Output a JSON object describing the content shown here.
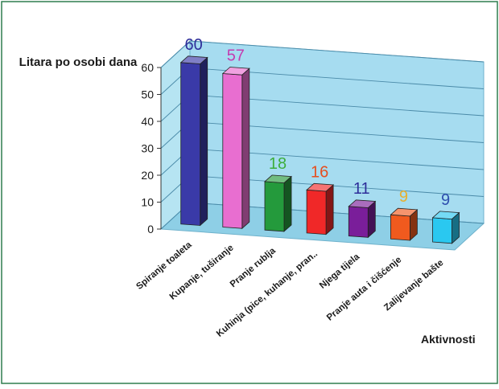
{
  "chart_data": {
    "type": "bar",
    "title": "",
    "ylabel": "Litara po osobi dana",
    "xlabel": "Aktivnosti",
    "ylim": [
      0,
      60
    ],
    "yticks": [
      0,
      10,
      20,
      30,
      40,
      50,
      60
    ],
    "grid": true,
    "style": "3d",
    "categories": [
      "Spiranje toaleta",
      "Kupanje, tuširanje",
      "Pranje rublja",
      "Kuhinja (pice, kuhanje, pran..",
      "Njega tijela",
      "Pranje auta i čišćenje",
      "Zalijevanje bašte"
    ],
    "values": [
      60,
      57,
      18,
      16,
      11,
      9,
      9
    ],
    "colors": [
      "#3a3aa8",
      "#e86ed0",
      "#249a3c",
      "#f02828",
      "#7a1e9a",
      "#f05a1e",
      "#2ac8f0"
    ],
    "label_colors": [
      "#2e2e9a",
      "#c43cb0",
      "#3cae3c",
      "#e64e1e",
      "#2e2e9a",
      "#e6b030",
      "#2e4eae"
    ]
  }
}
